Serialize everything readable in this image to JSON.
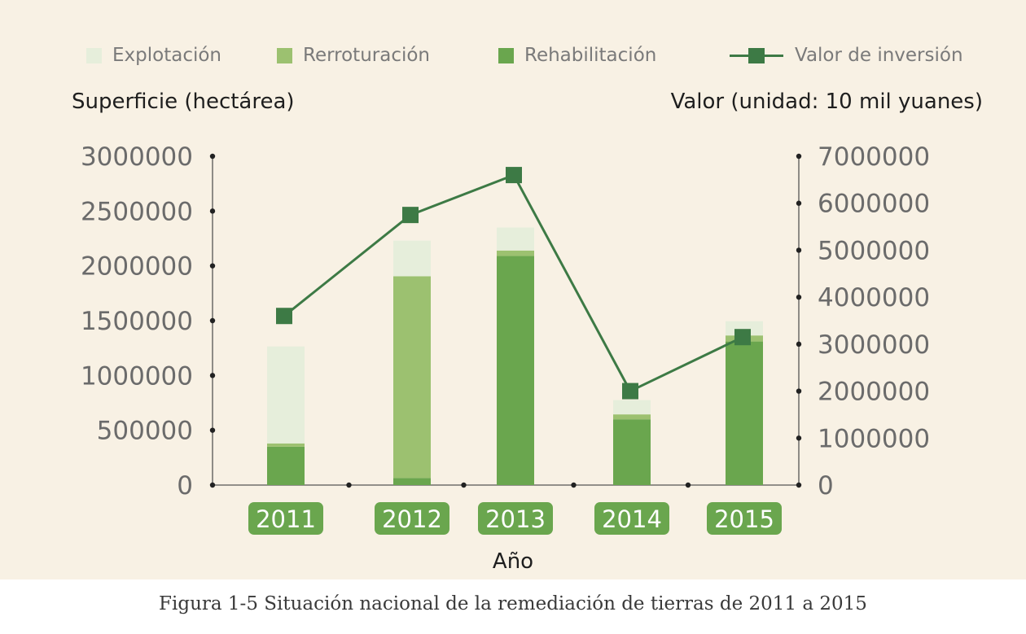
{
  "chart_data": {
    "type": "bar",
    "stacked": true,
    "categories": [
      "2011",
      "2012",
      "2013",
      "2014",
      "2015"
    ],
    "series": [
      {
        "name": "Rehabilitación",
        "kind": "bar",
        "axis": "left",
        "color": "#6aa64e",
        "values": [
          350000,
          65000,
          2090000,
          600000,
          1310000
        ]
      },
      {
        "name": "Rerroturación",
        "kind": "bar",
        "axis": "left",
        "color": "#9cc170",
        "values": [
          30000,
          1840000,
          50000,
          45000,
          55000
        ]
      },
      {
        "name": "Explotación",
        "kind": "bar",
        "axis": "left",
        "color": "#e6eedb",
        "values": [
          885000,
          325000,
          210000,
          130000,
          130000
        ]
      },
      {
        "name": "Valor de inversión",
        "kind": "line",
        "axis": "right",
        "color": "#3d7a45",
        "values": [
          3600000,
          5750000,
          6600000,
          2000000,
          3150000
        ]
      }
    ],
    "ylabel": "Superficie (hectárea)",
    "y2label": "Valor (unidad: 10 mil yuanes)",
    "xlabel": "Año",
    "ylim": [
      0,
      3000000
    ],
    "y2lim": [
      0,
      7000000
    ],
    "yticks": [
      "0",
      "500000",
      "1000000",
      "1500000",
      "2000000",
      "2500000",
      "3000000"
    ],
    "y2ticks": [
      "0",
      "1000000",
      "2000000",
      "3000000",
      "4000000",
      "5000000",
      "6000000",
      "7000000"
    ],
    "legend_position": "top",
    "legend_order": [
      "Explotación",
      "Rerroturación",
      "Rehabilitación",
      "Valor de inversión"
    ],
    "grid": false
  },
  "colors": {
    "background": "#f8f1e4",
    "tick_badge": "#6aa64e",
    "axis": "#555555"
  },
  "caption": "Figura 1-5 Situación nacional de la remediación de tierras de 2011 a 2015"
}
